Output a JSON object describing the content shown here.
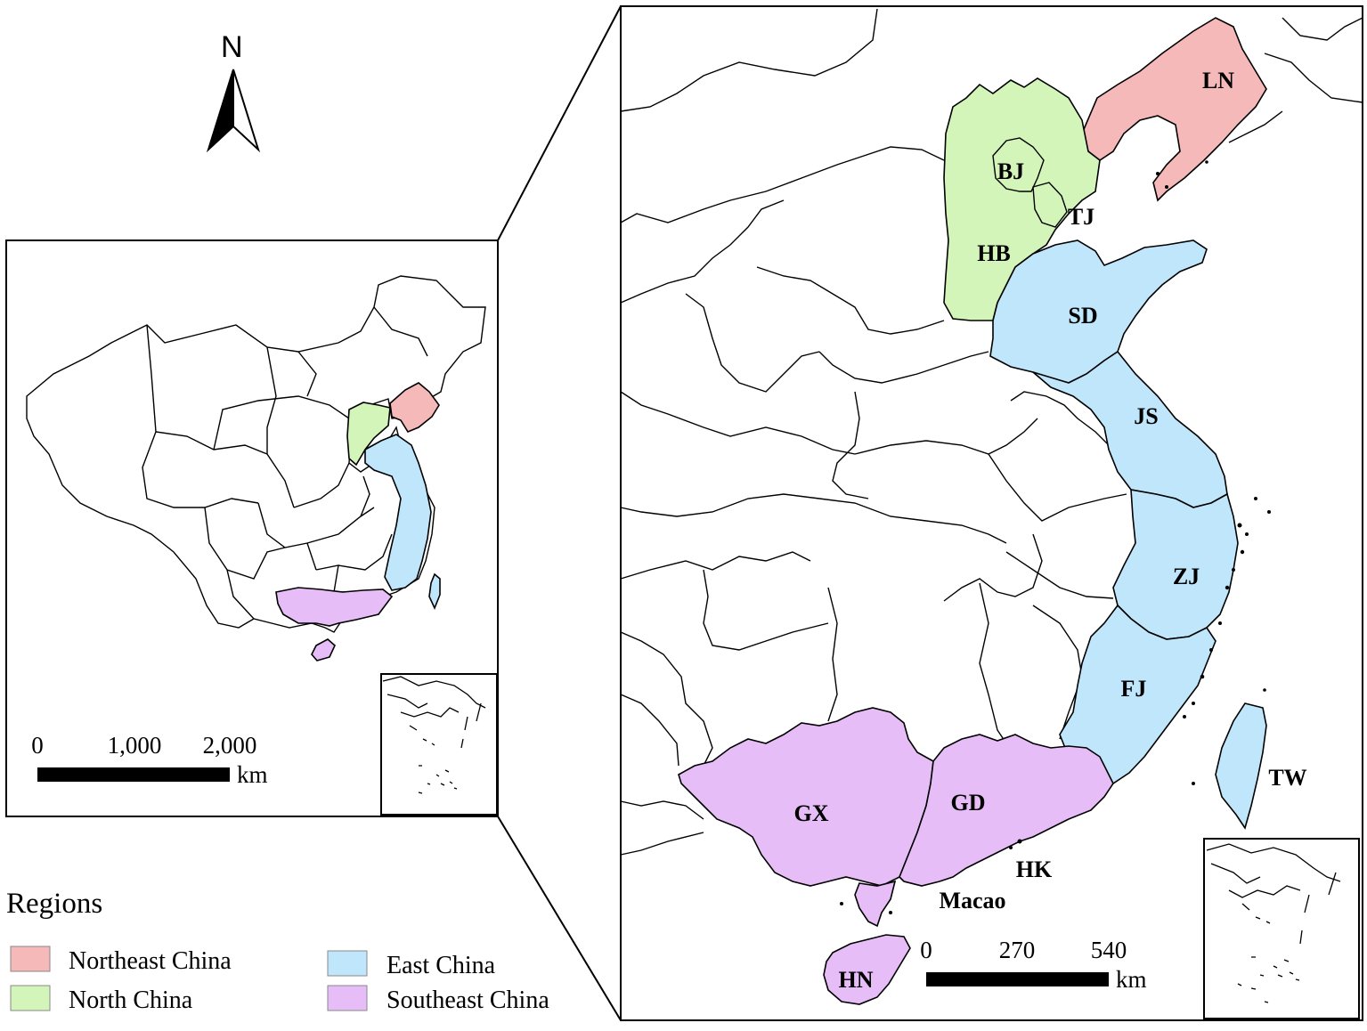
{
  "north_label": "N",
  "colors": {
    "northeast": "#f6b9b9",
    "north": "#d3f5b9",
    "east": "#bfe6fb",
    "southeast": "#e6bdf7"
  },
  "overview_map": {
    "scale": {
      "ticks": [
        "0",
        "1,000",
        "2,000"
      ],
      "unit": "km"
    }
  },
  "detail_map": {
    "scale": {
      "ticks": [
        "0",
        "270",
        "540"
      ],
      "unit": "km"
    },
    "labels": {
      "ln": "LN",
      "bj": "BJ",
      "tj": "TJ",
      "hb": "HB",
      "sd": "SD",
      "js": "JS",
      "zj": "ZJ",
      "fj": "FJ",
      "tw": "TW",
      "gx": "GX",
      "gd": "GD",
      "hk": "HK",
      "macao": "Macao",
      "hn": "HN"
    }
  },
  "legend": {
    "title": "Regions",
    "items": [
      {
        "label": "Northeast China",
        "color_key": "northeast"
      },
      {
        "label": "North China",
        "color_key": "north"
      },
      {
        "label": "East China",
        "color_key": "east"
      },
      {
        "label": "Southeast China",
        "color_key": "southeast"
      }
    ]
  }
}
